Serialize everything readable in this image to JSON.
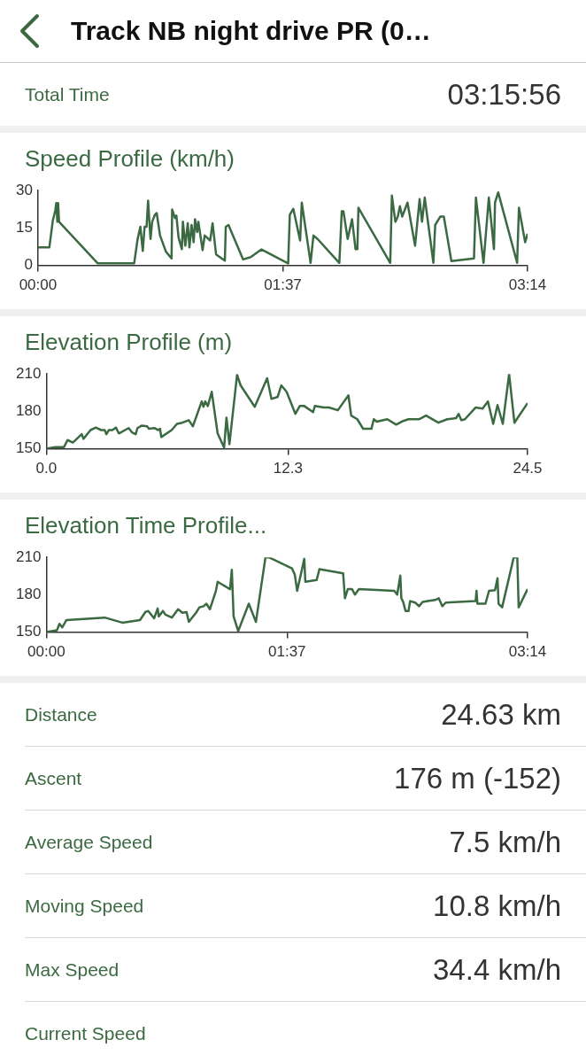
{
  "chart_data": [
    {
      "type": "other",
      "title": "Track NB night drive PR (0…",
      "annotations": [
        "Total Time",
        "03:15:56"
      ]
    },
    {
      "type": "line",
      "title": "Speed Profile (km/h)",
      "color": "#3b6a42",
      "x": [
        0,
        0.075,
        0.098,
        0.114,
        0.121,
        0.128,
        0.133,
        0.139,
        0.395,
        0.635,
        0.658,
        0.676,
        0.692,
        0.704,
        0.717,
        0.727,
        0.743,
        0.754,
        0.772,
        0.784,
        0.806,
        0.845,
        0.882,
        0.886,
        0.905,
        0.914,
        0.928,
        0.95,
        0.957,
        0.973,
        0.989,
        1.0,
        1.014,
        1.028,
        1.037,
        1.051,
        1.059,
        1.087,
        1.101,
        1.137,
        1.153,
        1.176,
        1.234,
        1.24,
        1.258,
        1.354,
        1.405,
        1.476,
        1.652,
        1.663,
        1.686,
        1.731,
        1.742,
        1.8,
        1.819,
        1.846,
        1.99,
        2.006,
        2.017,
        2.045,
        2.074,
        2.097,
        2.109,
        2.116,
        2.326,
        2.337,
        2.36,
        2.376,
        2.39,
        2.405,
        2.44,
        2.49,
        2.52,
        2.536,
        2.554,
        2.611,
        2.623,
        2.657,
        2.68,
        2.73,
        2.879,
        2.892,
        2.942,
        2.977,
        3.011,
        3.018,
        3.039,
        3.164,
        3.176,
        3.217,
        3.233
      ],
      "values": [
        7.2,
        7.2,
        18,
        22,
        25,
        17.5,
        25,
        17.5,
        0.8,
        0.8,
        10.6,
        15.5,
        5.8,
        15.5,
        15.5,
        26,
        10.6,
        17.5,
        20.3,
        21,
        12,
        5.5,
        2.8,
        22.4,
        19,
        20,
        11.3,
        6.5,
        17.5,
        7.9,
        16.9,
        7.2,
        16.2,
        9.3,
        18.5,
        13.4,
        17.5,
        6.1,
        12,
        10,
        16.9,
        4.4,
        1.9,
        15.5,
        16.2,
        2.4,
        3.3,
        6.4,
        0.8,
        20.3,
        22.7,
        10,
        25.2,
        1,
        12,
        10.6,
        1,
        21.7,
        21.7,
        10.6,
        18.5,
        6.5,
        6.5,
        23.1,
        1,
        28,
        17.5,
        19.6,
        23.8,
        19.6,
        25.2,
        7.9,
        26.6,
        17.5,
        27.2,
        1,
        16.2,
        19.6,
        19.6,
        1.7,
        2.8,
        27.2,
        1,
        27.2,
        6.5,
        25.2,
        29.3,
        1,
        23.1,
        9.3,
        12.7
      ],
      "xlim": [
        0,
        3.233
      ],
      "xticks": [
        {
          "value": 0,
          "label": "00:00"
        },
        {
          "value": 1.617,
          "label": "01:37"
        },
        {
          "value": 3.233,
          "label": "03:14"
        }
      ],
      "ylim": [
        0,
        30
      ],
      "yticks": [
        0,
        15,
        30
      ]
    },
    {
      "type": "line",
      "title": "Elevation Profile (m)",
      "color": "#3b6a42",
      "x": [
        0,
        0.45,
        0.9,
        1.08,
        1.35,
        1.8,
        1.89,
        2.25,
        2.52,
        2.79,
        2.97,
        3.06,
        3.18,
        3.36,
        3.54,
        3.69,
        4.19,
        4.37,
        4.55,
        4.64,
        4.86,
        5.13,
        5.22,
        5.49,
        5.7,
        5.79,
        5.85,
        6.38,
        6.65,
        6.92,
        7.25,
        7.46,
        7.91,
        8.0,
        8.09,
        8.22,
        8.42,
        8.72,
        9.05,
        9.17,
        9.32,
        9.71,
        9.89,
        10.61,
        11.24,
        11.46,
        11.78,
        11.96,
        12.23,
        12.68,
        12.9,
        13.13,
        13.58,
        13.67,
        14.12,
        14.39,
        14.84,
        15.38,
        15.52,
        15.83,
        16.13,
        16.55,
        16.67,
        16.82,
        17.36,
        17.81,
        18.17,
        18.44,
        18.97,
        19.33,
        19.96,
        20.41,
        20.86,
        20.99,
        21.13,
        21.31,
        21.85,
        22.21,
        22.48,
        22.75,
        22.97,
        23.24,
        23.56,
        23.83,
        24.19,
        24.5
      ],
      "values": [
        150,
        151.4,
        151.4,
        157,
        155,
        161.7,
        158,
        165,
        167,
        165,
        165,
        161.7,
        165,
        165,
        167,
        162.3,
        166.6,
        163,
        161.7,
        166.6,
        168.6,
        168,
        166,
        166.6,
        165,
        166,
        159.4,
        165,
        170,
        170.9,
        172.9,
        168,
        188,
        183.7,
        188,
        184.3,
        195.7,
        162.3,
        150.9,
        175,
        153.7,
        209.4,
        200.9,
        183.7,
        206.6,
        190,
        191.7,
        200.9,
        195.7,
        178,
        184.3,
        184.3,
        179.4,
        184.3,
        183.1,
        183.1,
        180.9,
        192.9,
        176.6,
        173.7,
        166,
        166,
        173.7,
        171.7,
        173.7,
        169.4,
        172.3,
        173.7,
        173.7,
        176.6,
        170.9,
        173.7,
        174.6,
        178,
        172.9,
        173.7,
        183.1,
        182.3,
        188,
        170,
        185.1,
        170,
        210,
        170.9,
        179.4,
        186.6
      ],
      "xlim": [
        0,
        24.5
      ],
      "xticks": [
        {
          "value": 0,
          "label": "0.0"
        },
        12.3,
        24.5
      ],
      "ylim": [
        150,
        210
      ],
      "yticks": [
        150,
        180,
        210
      ]
    },
    {
      "type": "line",
      "title": "Elevation Time Profile...",
      "color": "#3b6a42",
      "x": [
        0,
        0.071,
        0.088,
        0.107,
        0.135,
        0.392,
        0.51,
        0.629,
        0.665,
        0.684,
        0.705,
        0.724,
        0.748,
        0.755,
        0.783,
        0.8,
        0.843,
        0.885,
        0.914,
        0.942,
        0.957,
        1.009,
        1.028,
        1.056,
        1.075,
        1.099,
        1.139,
        1.151,
        1.18,
        1.234,
        1.246,
        1.258,
        1.289,
        1.36,
        1.408,
        1.472,
        1.495,
        1.65,
        1.669,
        1.685,
        1.733,
        1.74,
        1.816,
        1.835,
        1.994,
        2.006,
        2.025,
        2.054,
        2.073,
        2.1,
        2.338,
        2.357,
        2.378,
        2.385,
        2.397,
        2.413,
        2.433,
        2.444,
        2.478,
        2.504,
        2.528,
        2.563,
        2.612,
        2.636,
        2.66,
        2.683,
        2.884,
        2.89,
        2.896,
        2.95,
        2.974,
        3.014,
        3.031,
        3.038,
        3.062,
        3.14,
        3.164,
        3.173,
        3.233
      ],
      "values": [
        150,
        151.5,
        156.7,
        153.8,
        159.7,
        161.7,
        157.6,
        159.7,
        166.1,
        167,
        164,
        161.1,
        169,
        162.6,
        167,
        164,
        161.7,
        168.4,
        165.5,
        166.1,
        158.2,
        166.1,
        169.9,
        170.8,
        172.8,
        168.4,
        183.1,
        190.4,
        188.3,
        184.5,
        200,
        162.6,
        150.9,
        172.8,
        158.2,
        210,
        210,
        201.2,
        196.2,
        183.1,
        208.8,
        190.4,
        191.8,
        200.6,
        197.1,
        177.2,
        184.5,
        184.5,
        180.1,
        184.5,
        183.1,
        180.1,
        195.4,
        177.2,
        174.3,
        167,
        167,
        174.9,
        173.7,
        170.8,
        174.3,
        174.9,
        175.8,
        177.2,
        170.8,
        173.7,
        174.9,
        183.1,
        172.8,
        172.8,
        183.1,
        183.7,
        193.3,
        172.8,
        169.9,
        210,
        210,
        169.9,
        184.5
      ],
      "xlim": [
        0,
        3.233
      ],
      "xticks": [
        {
          "value": 0,
          "label": "00:00"
        },
        {
          "value": 1.617,
          "label": "01:37"
        },
        {
          "value": 3.233,
          "label": "03:14"
        }
      ],
      "ylim": [
        150,
        210
      ],
      "yticks": [
        150,
        180,
        210
      ]
    },
    {
      "type": "other",
      "annotations": [
        "Distance",
        "24.63 km",
        "Ascent",
        "176 m (-152)",
        "Average Speed",
        "7.5 km/h",
        "Moving Speed",
        "10.8 km/h",
        "Max Speed",
        "34.4 km/h",
        "Current Speed"
      ]
    }
  ]
}
